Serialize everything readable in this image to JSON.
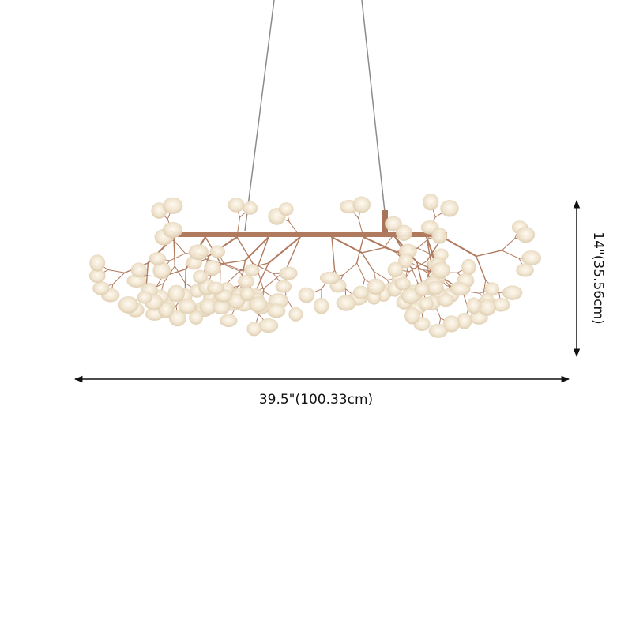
{
  "product": {
    "name": "",
    "image": "branching-firefly-chandelier",
    "colors": {
      "frame": "#b07a5e",
      "leaf": "#e9dcc6",
      "glow": "#fff3d6",
      "wire": "#8f8a86"
    }
  },
  "dimensions": {
    "width_label": "39.5\"(100.33cm)",
    "height_label": "14\"(35.56cm)"
  }
}
